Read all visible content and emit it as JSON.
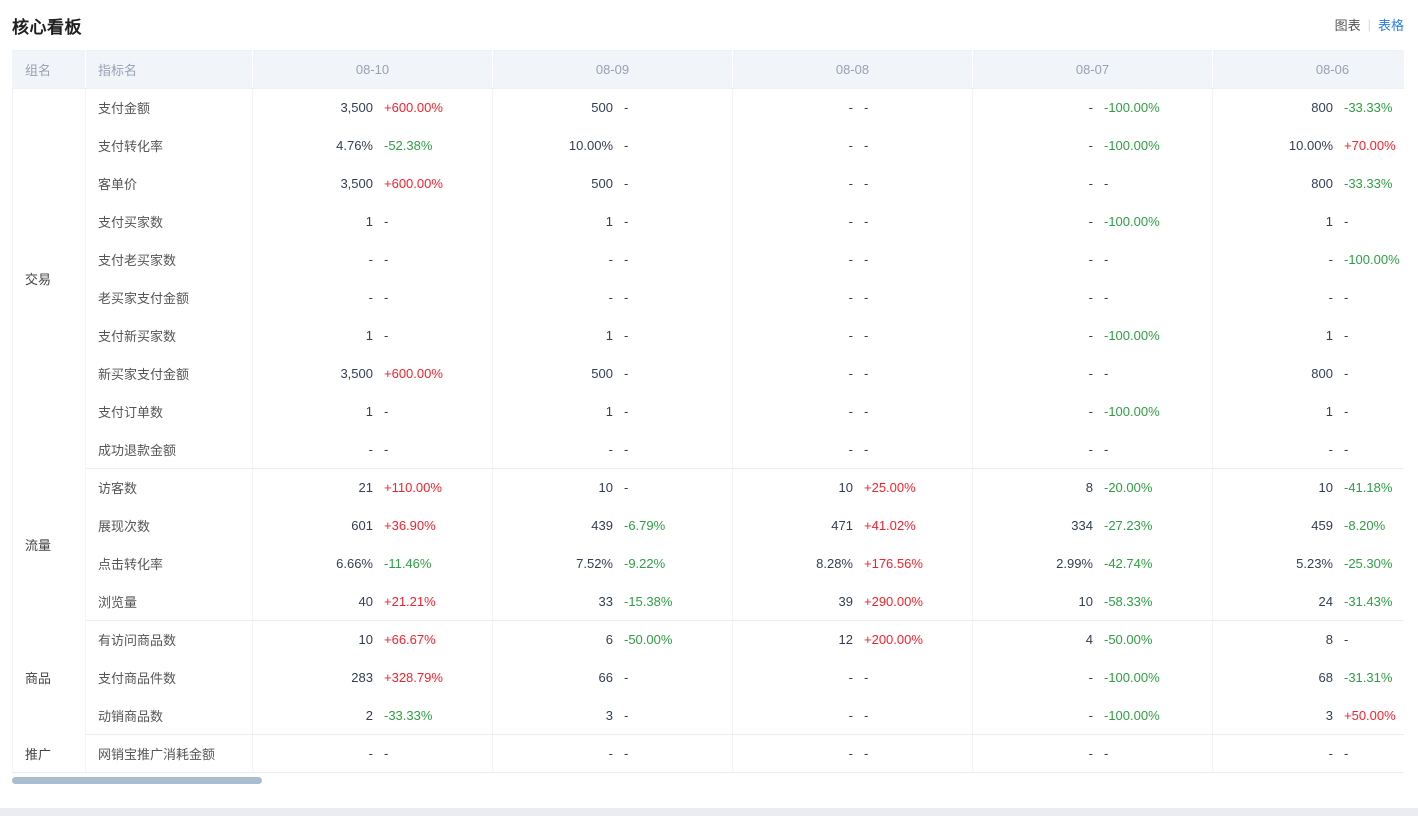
{
  "page": {
    "title": "核心看板",
    "view_toggle": {
      "chart": "图表",
      "separator": "|",
      "table": "表格",
      "active": "表格"
    }
  },
  "colors": {
    "increase": "#f5222d",
    "decrease": "#2f9e44",
    "active_link": "#2b7ce9"
  },
  "table": {
    "headers": {
      "group": "组名",
      "metric": "指标名",
      "dates": [
        "08-10",
        "08-09",
        "08-08",
        "08-07",
        "08-06"
      ]
    },
    "groups": [
      {
        "name": "交易",
        "rows": [
          {
            "metric": "支付金额",
            "cells": [
              {
                "v": "3,500",
                "d": "+600.00%",
                "t": "up"
              },
              {
                "v": "500",
                "d": "-",
                "t": "flat"
              },
              {
                "v": "-",
                "d": "-",
                "t": "flat"
              },
              {
                "v": "-",
                "d": "-100.00%",
                "t": "down"
              },
              {
                "v": "800",
                "d": "-33.33%",
                "t": "down"
              }
            ]
          },
          {
            "metric": "支付转化率",
            "cells": [
              {
                "v": "4.76%",
                "d": "-52.38%",
                "t": "down"
              },
              {
                "v": "10.00%",
                "d": "-",
                "t": "flat"
              },
              {
                "v": "-",
                "d": "-",
                "t": "flat"
              },
              {
                "v": "-",
                "d": "-100.00%",
                "t": "down"
              },
              {
                "v": "10.00%",
                "d": "+70.00%",
                "t": "up"
              }
            ]
          },
          {
            "metric": "客单价",
            "cells": [
              {
                "v": "3,500",
                "d": "+600.00%",
                "t": "up"
              },
              {
                "v": "500",
                "d": "-",
                "t": "flat"
              },
              {
                "v": "-",
                "d": "-",
                "t": "flat"
              },
              {
                "v": "-",
                "d": "-",
                "t": "flat"
              },
              {
                "v": "800",
                "d": "-33.33%",
                "t": "down"
              }
            ]
          },
          {
            "metric": "支付买家数",
            "cells": [
              {
                "v": "1",
                "d": "-",
                "t": "flat"
              },
              {
                "v": "1",
                "d": "-",
                "t": "flat"
              },
              {
                "v": "-",
                "d": "-",
                "t": "flat"
              },
              {
                "v": "-",
                "d": "-100.00%",
                "t": "down"
              },
              {
                "v": "1",
                "d": "-",
                "t": "flat"
              }
            ]
          },
          {
            "metric": "支付老买家数",
            "cells": [
              {
                "v": "-",
                "d": "-",
                "t": "flat"
              },
              {
                "v": "-",
                "d": "-",
                "t": "flat"
              },
              {
                "v": "-",
                "d": "-",
                "t": "flat"
              },
              {
                "v": "-",
                "d": "-",
                "t": "flat"
              },
              {
                "v": "-",
                "d": "-100.00%",
                "t": "down"
              }
            ]
          },
          {
            "metric": "老买家支付金额",
            "cells": [
              {
                "v": "-",
                "d": "-",
                "t": "flat"
              },
              {
                "v": "-",
                "d": "-",
                "t": "flat"
              },
              {
                "v": "-",
                "d": "-",
                "t": "flat"
              },
              {
                "v": "-",
                "d": "-",
                "t": "flat"
              },
              {
                "v": "-",
                "d": "-",
                "t": "flat"
              }
            ]
          },
          {
            "metric": "支付新买家数",
            "cells": [
              {
                "v": "1",
                "d": "-",
                "t": "flat"
              },
              {
                "v": "1",
                "d": "-",
                "t": "flat"
              },
              {
                "v": "-",
                "d": "-",
                "t": "flat"
              },
              {
                "v": "-",
                "d": "-100.00%",
                "t": "down"
              },
              {
                "v": "1",
                "d": "-",
                "t": "flat"
              }
            ]
          },
          {
            "metric": "新买家支付金额",
            "cells": [
              {
                "v": "3,500",
                "d": "+600.00%",
                "t": "up"
              },
              {
                "v": "500",
                "d": "-",
                "t": "flat"
              },
              {
                "v": "-",
                "d": "-",
                "t": "flat"
              },
              {
                "v": "-",
                "d": "-",
                "t": "flat"
              },
              {
                "v": "800",
                "d": "-",
                "t": "flat"
              }
            ]
          },
          {
            "metric": "支付订单数",
            "cells": [
              {
                "v": "1",
                "d": "-",
                "t": "flat"
              },
              {
                "v": "1",
                "d": "-",
                "t": "flat"
              },
              {
                "v": "-",
                "d": "-",
                "t": "flat"
              },
              {
                "v": "-",
                "d": "-100.00%",
                "t": "down"
              },
              {
                "v": "1",
                "d": "-",
                "t": "flat"
              }
            ]
          },
          {
            "metric": "成功退款金额",
            "cells": [
              {
                "v": "-",
                "d": "-",
                "t": "flat"
              },
              {
                "v": "-",
                "d": "-",
                "t": "flat"
              },
              {
                "v": "-",
                "d": "-",
                "t": "flat"
              },
              {
                "v": "-",
                "d": "-",
                "t": "flat"
              },
              {
                "v": "-",
                "d": "-",
                "t": "flat"
              }
            ]
          }
        ]
      },
      {
        "name": "流量",
        "rows": [
          {
            "metric": "访客数",
            "cells": [
              {
                "v": "21",
                "d": "+110.00%",
                "t": "up"
              },
              {
                "v": "10",
                "d": "-",
                "t": "flat"
              },
              {
                "v": "10",
                "d": "+25.00%",
                "t": "up"
              },
              {
                "v": "8",
                "d": "-20.00%",
                "t": "down"
              },
              {
                "v": "10",
                "d": "-41.18%",
                "t": "down"
              }
            ]
          },
          {
            "metric": "展现次数",
            "cells": [
              {
                "v": "601",
                "d": "+36.90%",
                "t": "up"
              },
              {
                "v": "439",
                "d": "-6.79%",
                "t": "down"
              },
              {
                "v": "471",
                "d": "+41.02%",
                "t": "up"
              },
              {
                "v": "334",
                "d": "-27.23%",
                "t": "down"
              },
              {
                "v": "459",
                "d": "-8.20%",
                "t": "down"
              }
            ]
          },
          {
            "metric": "点击转化率",
            "cells": [
              {
                "v": "6.66%",
                "d": "-11.46%",
                "t": "down"
              },
              {
                "v": "7.52%",
                "d": "-9.22%",
                "t": "down"
              },
              {
                "v": "8.28%",
                "d": "+176.56%",
                "t": "up"
              },
              {
                "v": "2.99%",
                "d": "-42.74%",
                "t": "down"
              },
              {
                "v": "5.23%",
                "d": "-25.30%",
                "t": "down"
              }
            ]
          },
          {
            "metric": "浏览量",
            "cells": [
              {
                "v": "40",
                "d": "+21.21%",
                "t": "up"
              },
              {
                "v": "33",
                "d": "-15.38%",
                "t": "down"
              },
              {
                "v": "39",
                "d": "+290.00%",
                "t": "up"
              },
              {
                "v": "10",
                "d": "-58.33%",
                "t": "down"
              },
              {
                "v": "24",
                "d": "-31.43%",
                "t": "down"
              }
            ]
          }
        ]
      },
      {
        "name": "商品",
        "rows": [
          {
            "metric": "有访问商品数",
            "cells": [
              {
                "v": "10",
                "d": "+66.67%",
                "t": "up"
              },
              {
                "v": "6",
                "d": "-50.00%",
                "t": "down"
              },
              {
                "v": "12",
                "d": "+200.00%",
                "t": "up"
              },
              {
                "v": "4",
                "d": "-50.00%",
                "t": "down"
              },
              {
                "v": "8",
                "d": "-",
                "t": "flat"
              }
            ]
          },
          {
            "metric": "支付商品件数",
            "cells": [
              {
                "v": "283",
                "d": "+328.79%",
                "t": "up"
              },
              {
                "v": "66",
                "d": "-",
                "t": "flat"
              },
              {
                "v": "-",
                "d": "-",
                "t": "flat"
              },
              {
                "v": "-",
                "d": "-100.00%",
                "t": "down"
              },
              {
                "v": "68",
                "d": "-31.31%",
                "t": "down"
              }
            ]
          },
          {
            "metric": "动销商品数",
            "cells": [
              {
                "v": "2",
                "d": "-33.33%",
                "t": "down"
              },
              {
                "v": "3",
                "d": "-",
                "t": "flat"
              },
              {
                "v": "-",
                "d": "-",
                "t": "flat"
              },
              {
                "v": "-",
                "d": "-100.00%",
                "t": "down"
              },
              {
                "v": "3",
                "d": "+50.00%",
                "t": "up"
              }
            ]
          }
        ]
      },
      {
        "name": "推广",
        "rows": [
          {
            "metric": "网销宝推广消耗金额",
            "cells": [
              {
                "v": "-",
                "d": "-",
                "t": "flat"
              },
              {
                "v": "-",
                "d": "-",
                "t": "flat"
              },
              {
                "v": "-",
                "d": "-",
                "t": "flat"
              },
              {
                "v": "-",
                "d": "-",
                "t": "flat"
              },
              {
                "v": "-",
                "d": "-",
                "t": "flat"
              }
            ]
          }
        ]
      }
    ]
  }
}
